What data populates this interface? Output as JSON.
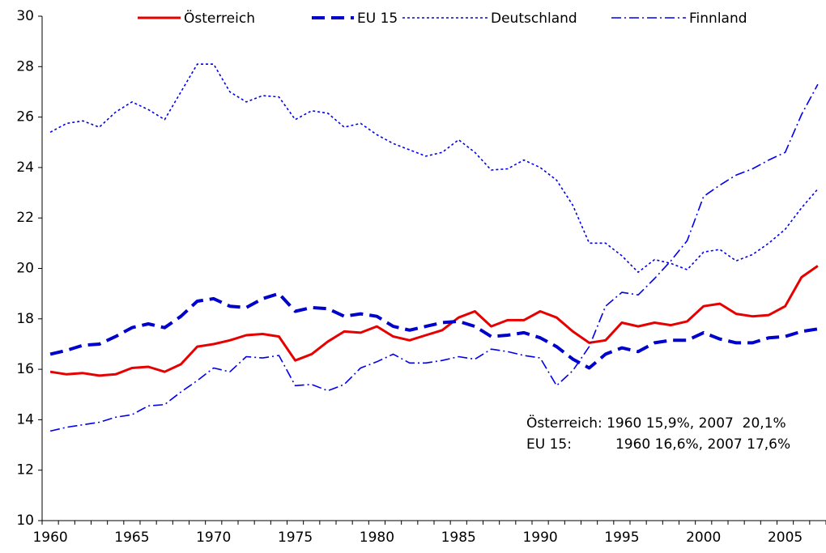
{
  "chart_data": {
    "type": "line",
    "categories": [
      "1960",
      null,
      null,
      null,
      null,
      "1965",
      null,
      null,
      null,
      null,
      "1970",
      null,
      null,
      null,
      null,
      "1975",
      null,
      null,
      null,
      null,
      "1980",
      null,
      null,
      null,
      null,
      "1985",
      null,
      null,
      null,
      null,
      "1990",
      null,
      null,
      null,
      null,
      "1995",
      null,
      null,
      null,
      null,
      "2000",
      null,
      null,
      null,
      null,
      "2005",
      null,
      null
    ],
    "ylim": [
      10,
      30
    ],
    "yticks": [
      10,
      12,
      14,
      16,
      18,
      20,
      22,
      24,
      26,
      28,
      30
    ],
    "series": [
      {
        "name": "Österreich",
        "color": "#e60000",
        "values": [
          15.9,
          15.8,
          15.85,
          15.75,
          15.8,
          16.05,
          16.1,
          15.9,
          16.2,
          16.9,
          17.0,
          17.15,
          17.35,
          17.4,
          17.3,
          16.35,
          16.6,
          17.1,
          17.5,
          17.45,
          17.7,
          17.3,
          17.15,
          17.35,
          17.55,
          18.05,
          18.3,
          17.7,
          17.95,
          17.95,
          18.3,
          18.05,
          17.5,
          17.05,
          17.15,
          17.85,
          17.7,
          17.85,
          17.75,
          17.9,
          18.5,
          18.6,
          18.2,
          18.1,
          18.15,
          18.5,
          19.65,
          20.1
        ]
      },
      {
        "name": "EU 15",
        "color": "#0000cc",
        "values": [
          16.6,
          16.75,
          16.95,
          17.0,
          17.3,
          17.65,
          17.8,
          17.65,
          18.1,
          18.7,
          18.8,
          18.5,
          18.45,
          18.8,
          19.0,
          18.3,
          18.45,
          18.4,
          18.1,
          18.2,
          18.1,
          17.7,
          17.55,
          17.7,
          17.85,
          17.9,
          17.7,
          17.3,
          17.35,
          17.45,
          17.25,
          16.9,
          16.4,
          16.05,
          16.6,
          16.85,
          16.7,
          17.05,
          17.15,
          17.15,
          17.45,
          17.2,
          17.05,
          17.05,
          17.25,
          17.3,
          17.5,
          17.6
        ]
      },
      {
        "name": "Deutschland",
        "color": "#0000ee",
        "values": [
          25.4,
          25.75,
          25.85,
          25.6,
          26.2,
          26.6,
          26.3,
          25.9,
          27.0,
          28.1,
          28.1,
          27.0,
          26.6,
          26.85,
          26.8,
          25.9,
          26.25,
          26.15,
          25.6,
          25.75,
          25.3,
          24.95,
          24.7,
          24.45,
          24.6,
          25.1,
          24.6,
          23.9,
          23.95,
          24.3,
          24.0,
          23.5,
          22.5,
          21.0,
          21.0,
          20.5,
          19.85,
          20.35,
          20.2,
          19.95,
          20.65,
          20.75,
          20.3,
          20.55,
          21.0,
          21.55,
          22.4,
          23.15
        ]
      },
      {
        "name": "Finnland",
        "color": "#0000ee",
        "values": [
          13.55,
          13.7,
          13.8,
          13.9,
          14.1,
          14.2,
          14.55,
          14.6,
          15.1,
          15.55,
          16.05,
          15.9,
          16.5,
          16.45,
          16.55,
          15.35,
          15.4,
          15.15,
          15.4,
          16.05,
          16.3,
          16.6,
          16.25,
          16.25,
          16.35,
          16.5,
          16.4,
          16.8,
          16.7,
          16.55,
          16.45,
          15.35,
          15.95,
          16.9,
          18.5,
          19.05,
          18.95,
          19.6,
          20.3,
          21.1,
          22.85,
          23.3,
          23.7,
          23.95,
          24.3,
          24.6,
          26.1,
          27.3
        ]
      }
    ],
    "annotations": [
      "Österreich: 1960 15,9%, 2007  20,1%",
      "EU 15:          1960 16,6%, 2007 17,6%"
    ]
  }
}
